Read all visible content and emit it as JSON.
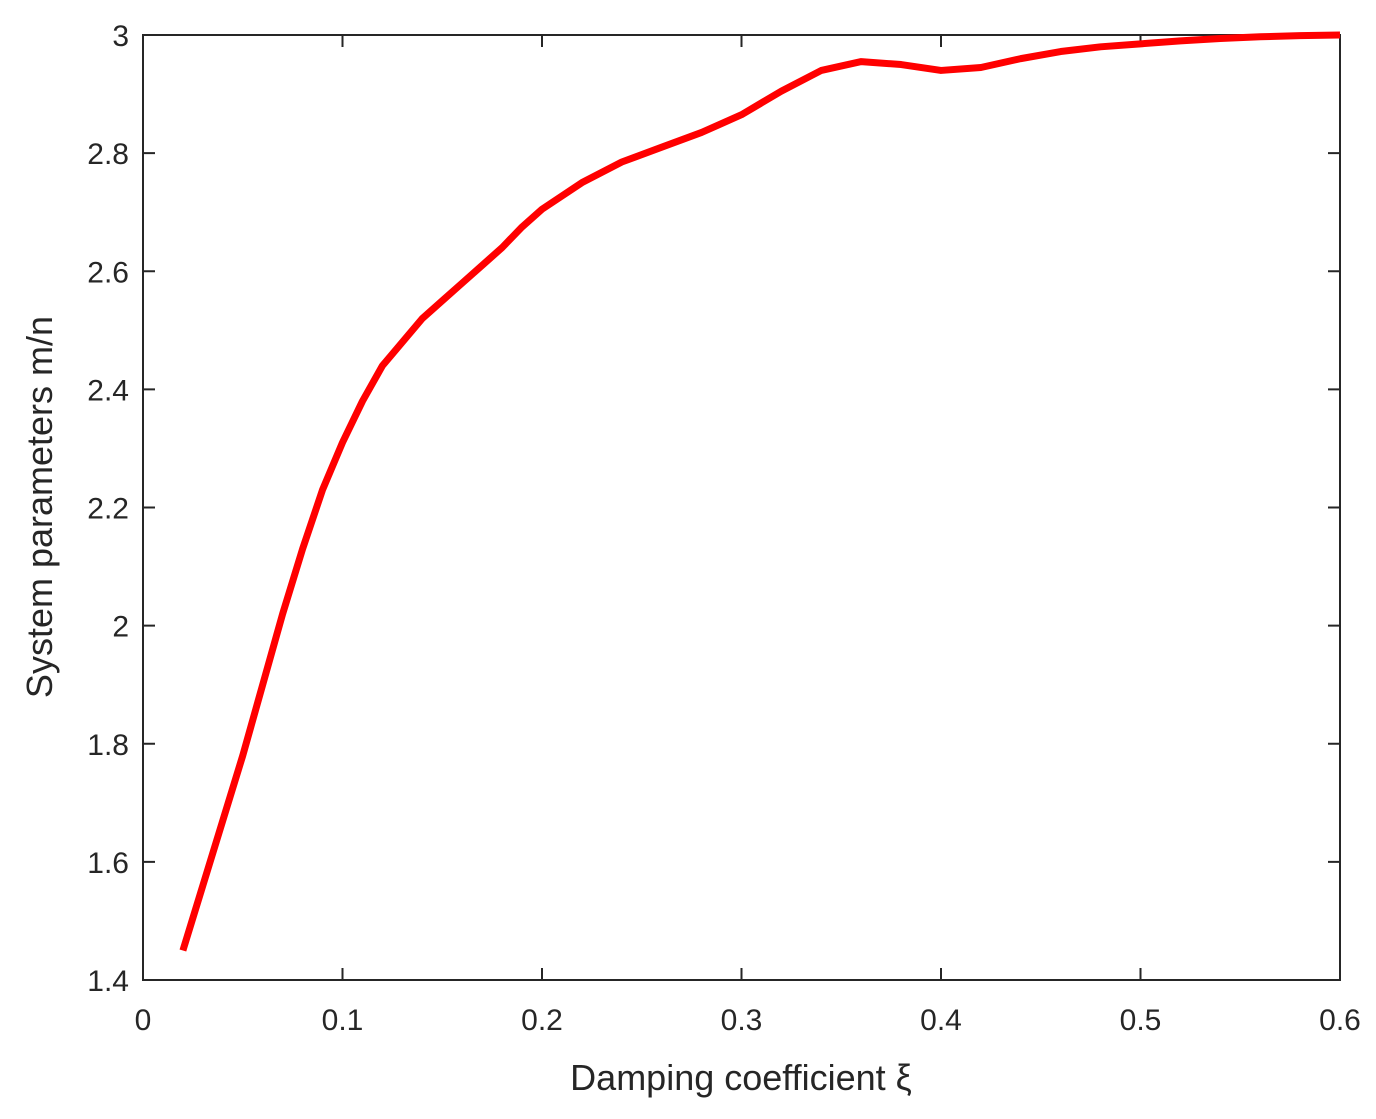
{
  "chart_data": {
    "type": "line",
    "x_label": "Damping coefficient ξ",
    "y_label": "System parameters m/n",
    "series": [
      {
        "color": "#ff0000",
        "x": [
          0.02,
          0.03,
          0.04,
          0.05,
          0.06,
          0.07,
          0.08,
          0.09,
          0.1,
          0.11,
          0.12,
          0.13,
          0.14,
          0.15,
          0.16,
          0.17,
          0.18,
          0.19,
          0.2,
          0.22,
          0.24,
          0.26,
          0.28,
          0.3,
          0.32,
          0.34,
          0.36,
          0.38,
          0.4,
          0.42,
          0.44,
          0.46,
          0.48,
          0.5,
          0.52,
          0.54,
          0.56,
          0.58,
          0.6
        ],
        "values": [
          1.45,
          1.56,
          1.67,
          1.78,
          1.9,
          2.02,
          2.13,
          2.23,
          2.31,
          2.38,
          2.44,
          2.48,
          2.52,
          2.55,
          2.58,
          2.61,
          2.64,
          2.675,
          2.705,
          2.75,
          2.785,
          2.81,
          2.835,
          2.865,
          2.905,
          2.94,
          2.955,
          2.95,
          2.94,
          2.945,
          2.96,
          2.972,
          2.98,
          2.985,
          2.99,
          2.994,
          2.997,
          2.999,
          3
        ]
      }
    ],
    "xlim": [
      0,
      0.6
    ],
    "xticks": [
      0,
      0.1,
      0.2,
      0.3,
      0.4,
      0.5,
      0.6
    ],
    "ylim": [
      1.4,
      3
    ],
    "yticks": [
      1.4,
      1.6,
      1.8,
      2,
      2.2,
      2.4,
      2.6,
      2.8,
      3
    ]
  }
}
